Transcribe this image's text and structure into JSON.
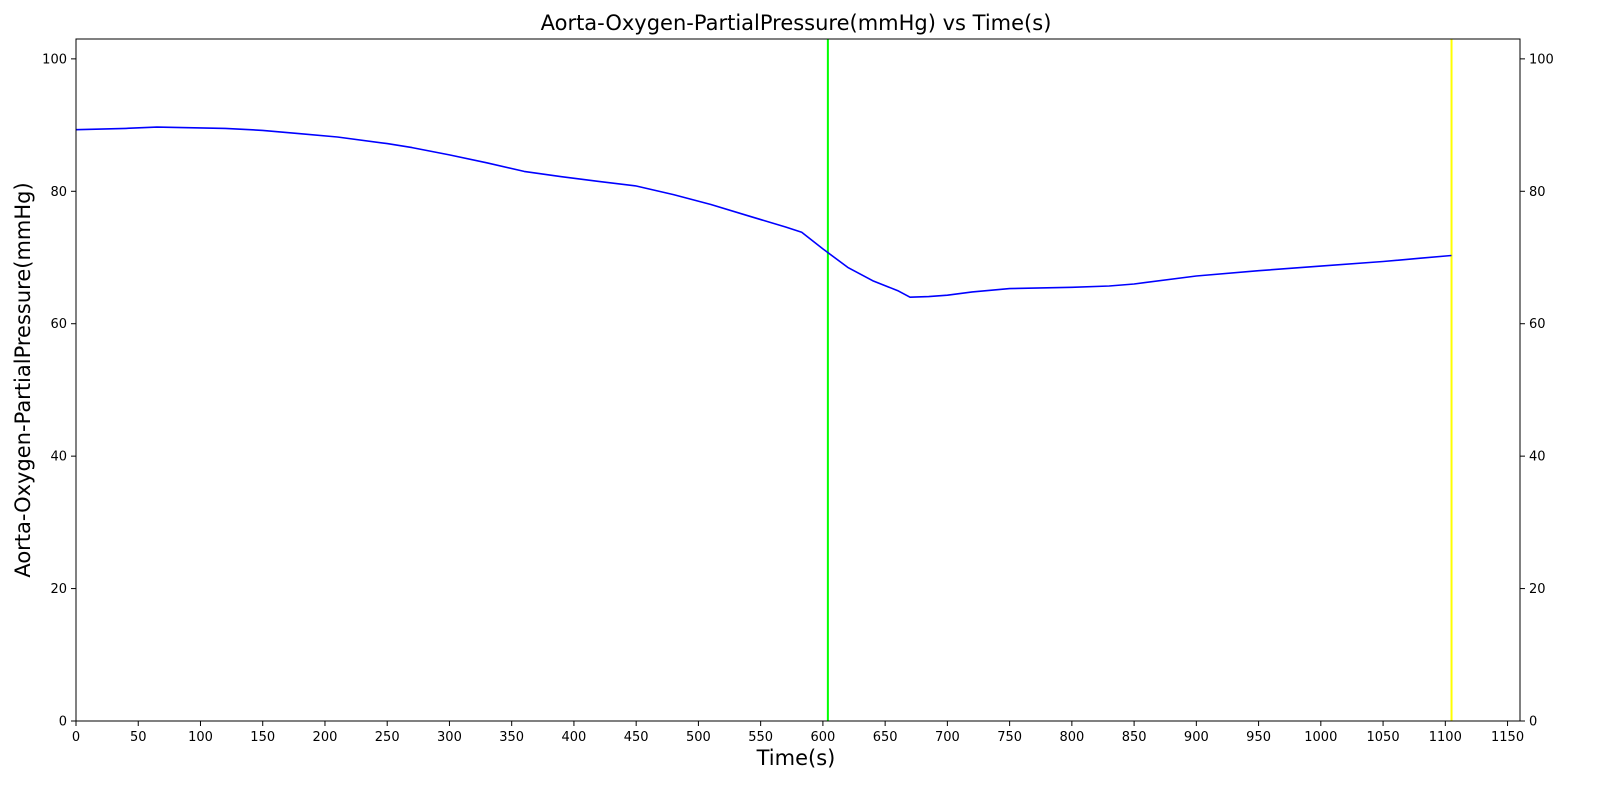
{
  "chart_data": {
    "type": "line",
    "title": "Aorta-Oxygen-PartialPressure(mmHg) vs Time(s)",
    "xlabel": "Time(s)",
    "ylabel": "Aorta-Oxygen-PartialPressure(mmHg)",
    "xlim": [
      0,
      1160
    ],
    "ylim": [
      0,
      103
    ],
    "x_ticks": [
      0,
      50,
      100,
      150,
      200,
      250,
      300,
      350,
      400,
      450,
      500,
      550,
      600,
      650,
      700,
      750,
      800,
      850,
      900,
      950,
      1000,
      1050,
      1100,
      1150
    ],
    "y_ticks": [
      0,
      20,
      40,
      60,
      80,
      100
    ],
    "right_y_axis": true,
    "grid": false,
    "series": [
      {
        "color": "#0000ff",
        "x": [
          0,
          40,
          65,
          120,
          150,
          180,
          210,
          250,
          270,
          300,
          330,
          360,
          390,
          420,
          450,
          480,
          510,
          540,
          570,
          583,
          600,
          620,
          640,
          660,
          670,
          685,
          700,
          720,
          750,
          800,
          830,
          850,
          900,
          950,
          1000,
          1050,
          1080,
          1105
        ],
        "y": [
          89.3,
          89.5,
          89.7,
          89.5,
          89.2,
          88.7,
          88.2,
          87.2,
          86.6,
          85.5,
          84.3,
          83.0,
          82.2,
          81.5,
          80.8,
          79.5,
          78.0,
          76.3,
          74.6,
          73.8,
          71.3,
          68.5,
          66.5,
          65.0,
          64.0,
          64.1,
          64.3,
          64.8,
          65.3,
          65.5,
          65.7,
          66.0,
          67.2,
          68.0,
          68.7,
          69.4,
          69.9,
          70.3
        ]
      }
    ],
    "vertical_lines": [
      {
        "x": 604,
        "color": "#00ff00"
      },
      {
        "x": 1105,
        "color": "#ffff00"
      }
    ]
  }
}
